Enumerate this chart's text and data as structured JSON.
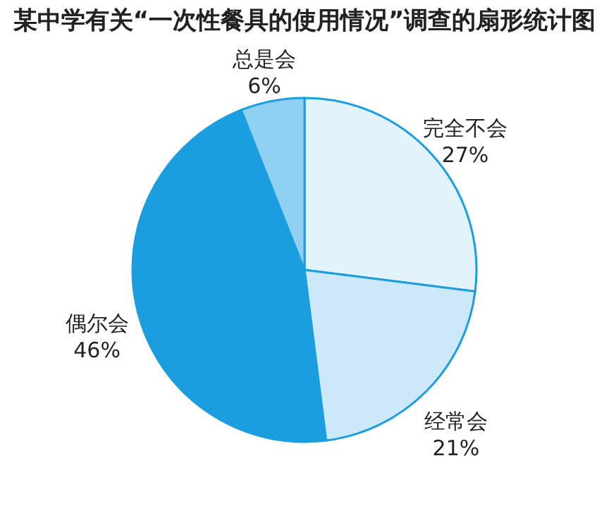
{
  "chart_data": {
    "type": "pie",
    "title": "某中学有关“一次性餐具的使用情况”调查的扇形统计图",
    "categories": [
      "完全不会",
      "经常会",
      "偶尔会",
      "总是会"
    ],
    "values": [
      27,
      21,
      46,
      6
    ],
    "value_labels": [
      "27%",
      "21%",
      "46%",
      "6%"
    ],
    "colors": [
      "#e3f3fc",
      "#cde9f9",
      "#1a9ee0",
      "#8fd0f3"
    ]
  }
}
